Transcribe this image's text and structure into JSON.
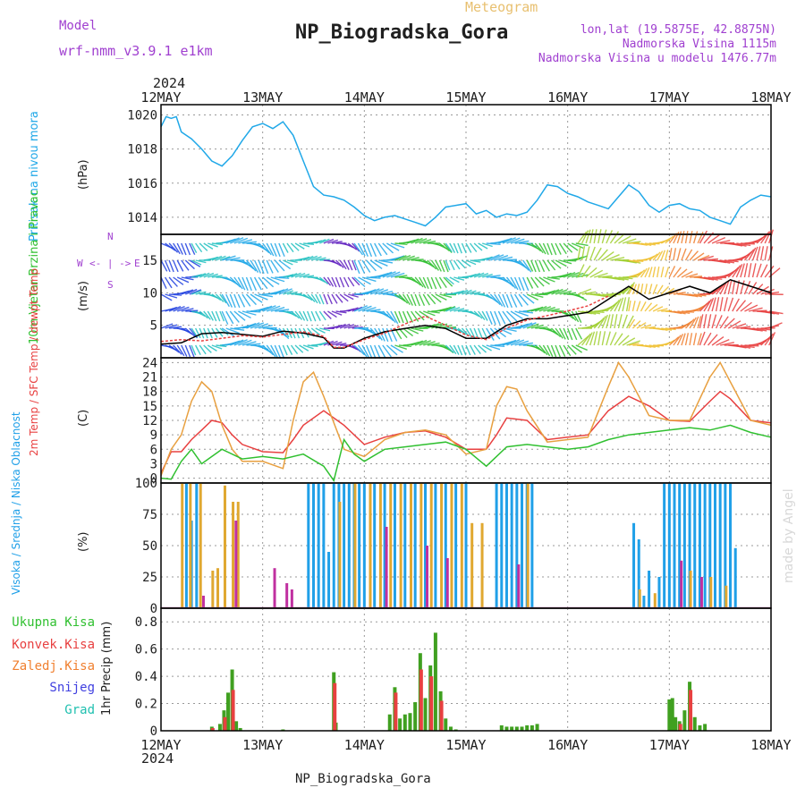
{
  "header": {
    "model_label": "Model",
    "model_name": "wrf-nmm_v3.9.1  e1km",
    "title": "NP_Biogradska_Gora",
    "subtitle": "Meteogram",
    "lonlat": "lon,lat (19.5875E, 42.8875N)",
    "elevation": "Nadmorska Visina 1115m",
    "model_elevation": "Nadmorska Visina u modelu 1476.77m",
    "footer": "NP_Biogradska_Gora",
    "watermark": "made by Angel",
    "year_top": "2024",
    "year_bottom": "2024",
    "colors": {
      "purple": "#a040d0",
      "orange": "#e8b040",
      "cyan": "#20a8e8",
      "green": "#30c030",
      "red": "#e84040"
    }
  },
  "chart_data": [
    {
      "type": "line",
      "title": "Pritisak na nivou mora",
      "ylabel": "(hPa)",
      "x_tick_labels": [
        "12MAY",
        "13MAY",
        "14MAY",
        "15MAY",
        "16MAY",
        "17MAY",
        "18MAY"
      ],
      "ylim": [
        1013,
        1020.6
      ],
      "yticks": [
        1014,
        1016,
        1018,
        1020
      ],
      "grid": true,
      "series": [
        {
          "color": "#20a8e8",
          "x": [
            0,
            0.05,
            0.1,
            0.15,
            0.2,
            0.3,
            0.4,
            0.5,
            0.6,
            0.7,
            0.8,
            0.9,
            1.0,
            1.1,
            1.2,
            1.3,
            1.4,
            1.5,
            1.6,
            1.7,
            1.8,
            1.9,
            2.0,
            2.1,
            2.2,
            2.3,
            2.4,
            2.5,
            2.6,
            2.7,
            2.8,
            2.9,
            3.0,
            3.1,
            3.2,
            3.3,
            3.4,
            3.5,
            3.6,
            3.7,
            3.8,
            3.9,
            4.0,
            4.1,
            4.2,
            4.3,
            4.4,
            4.5,
            4.6,
            4.7,
            4.8,
            4.9,
            5.0,
            5.1,
            5.2,
            5.3,
            5.4,
            5.5,
            5.6,
            5.7,
            5.8,
            5.9,
            6.0
          ],
          "y": [
            1019.3,
            1019.9,
            1019.8,
            1019.9,
            1019.0,
            1018.6,
            1018.0,
            1017.3,
            1017.0,
            1017.6,
            1018.5,
            1019.3,
            1019.5,
            1019.2,
            1019.6,
            1018.8,
            1017.3,
            1015.8,
            1015.3,
            1015.2,
            1015.0,
            1014.6,
            1014.1,
            1013.8,
            1014.0,
            1014.1,
            1013.9,
            1013.7,
            1013.5,
            1014.0,
            1014.6,
            1014.7,
            1014.8,
            1014.2,
            1014.4,
            1014.0,
            1014.2,
            1014.1,
            1014.3,
            1015.0,
            1015.9,
            1015.8,
            1015.4,
            1015.2,
            1014.9,
            1014.7,
            1014.5,
            1015.2,
            1015.9,
            1015.5,
            1014.7,
            1014.3,
            1014.7,
            1014.8,
            1014.5,
            1014.4,
            1014.0,
            1013.8,
            1013.6,
            1014.6,
            1015.0,
            1015.3,
            1015.2
          ]
        }
      ]
    },
    {
      "type": "line",
      "title": "10m Vjetar Brzina i Pravac",
      "ylabel": "(m/s)",
      "direction_legend": [
        "N",
        "W",
        "E",
        "<- | ->",
        "S"
      ],
      "ylim": [
        0,
        19
      ],
      "yticks": [
        5,
        10,
        15
      ],
      "grid": true,
      "wind_barb_colors": [
        "#6020c0",
        "#2040e0",
        "#20a8e8",
        "#20c0c0",
        "#30c030",
        "#a0d030",
        "#f0c030",
        "#f08030",
        "#e84040"
      ],
      "series": [
        {
          "color": "#000000",
          "x": [
            0,
            0.2,
            0.4,
            0.6,
            0.8,
            1.0,
            1.2,
            1.4,
            1.6,
            1.7,
            1.8,
            2.0,
            2.2,
            2.4,
            2.6,
            2.8,
            3.0,
            3.2,
            3.4,
            3.6,
            3.8,
            4.0,
            4.2,
            4.4,
            4.6,
            4.8,
            5.0,
            5.2,
            5.4,
            5.6,
            5.8,
            6.0
          ],
          "y": [
            2.1,
            2.3,
            3.7,
            3.9,
            3.6,
            3.3,
            4.1,
            3.8,
            3.1,
            1.5,
            1.5,
            3.0,
            4.0,
            4.5,
            5.0,
            4.5,
            3.0,
            3.0,
            5.0,
            6.0,
            6.0,
            6.5,
            7.0,
            9.0,
            11.0,
            9.0,
            10.0,
            11.0,
            10.0,
            12.0,
            11.0,
            10.0
          ]
        },
        {
          "color": "#e84040",
          "x": [
            0,
            0.2,
            0.4,
            0.6,
            0.8,
            1.0,
            1.2,
            1.4,
            1.6,
            1.7,
            1.8,
            2.0,
            2.2,
            2.4,
            2.6,
            2.8,
            3.0,
            3.2,
            3.4,
            3.6,
            3.8,
            4.0,
            4.2,
            4.4
          ],
          "y": [
            2.5,
            2.8,
            2.6,
            3.0,
            3.4,
            3.2,
            3.6,
            4.0,
            3.3,
            1.6,
            1.6,
            2.8,
            3.8,
            5.2,
            6.4,
            5.0,
            3.5,
            2.8,
            4.6,
            5.8,
            6.5,
            7.2,
            8.0,
            9.5
          ]
        }
      ]
    },
    {
      "type": "line",
      "title": "2m Temp / SFC Temp / dewpt Temp",
      "ylabel": "(C)",
      "ylim": [
        -1,
        25
      ],
      "yticks": [
        0,
        3,
        6,
        9,
        12,
        15,
        18,
        21,
        24
      ],
      "grid": true,
      "series": [
        {
          "name": "2m Temp",
          "color": "#e84040",
          "x": [
            0,
            0.1,
            0.2,
            0.3,
            0.4,
            0.5,
            0.6,
            0.7,
            0.8,
            1.0,
            1.2,
            1.3,
            1.4,
            1.6,
            1.8,
            2.0,
            2.2,
            2.4,
            2.6,
            2.8,
            3.0,
            3.2,
            3.3,
            3.4,
            3.6,
            3.8,
            4.0,
            4.2,
            4.4,
            4.6,
            4.8,
            5.0,
            5.2,
            5.4,
            5.5,
            5.6,
            5.8,
            6.0
          ],
          "y": [
            1.0,
            5.5,
            5.5,
            8.0,
            10.0,
            12.0,
            11.5,
            9.0,
            7.0,
            5.5,
            5.3,
            8.0,
            11.0,
            14.0,
            11.0,
            7.0,
            8.5,
            9.5,
            9.8,
            8.5,
            6.0,
            6.0,
            9.0,
            12.5,
            12.0,
            8.0,
            8.5,
            9.0,
            14.0,
            17.0,
            15.0,
            12.0,
            11.8,
            16.0,
            18.0,
            16.5,
            12.0,
            11.5
          ]
        },
        {
          "name": "SFC Temp",
          "color": "#e8a040",
          "x": [
            0,
            0.1,
            0.2,
            0.3,
            0.4,
            0.5,
            0.6,
            0.7,
            0.8,
            1.0,
            1.2,
            1.3,
            1.4,
            1.5,
            1.6,
            1.8,
            2.0,
            2.2,
            2.4,
            2.6,
            2.8,
            3.0,
            3.2,
            3.3,
            3.4,
            3.5,
            3.6,
            3.8,
            4.0,
            4.2,
            4.4,
            4.5,
            4.6,
            4.8,
            5.0,
            5.2,
            5.4,
            5.5,
            5.6,
            5.8,
            6.0
          ],
          "y": [
            0.5,
            6.0,
            9.0,
            16.0,
            20.0,
            18.0,
            11.0,
            6.0,
            3.5,
            3.5,
            2.0,
            12.0,
            20.0,
            22.0,
            17.0,
            6.0,
            4.5,
            8.0,
            9.5,
            10.0,
            9.0,
            5.0,
            6.0,
            15.0,
            19.0,
            18.5,
            14.0,
            7.5,
            8.0,
            8.5,
            19.0,
            24.0,
            21.0,
            13.0,
            12.0,
            12.0,
            21.0,
            24.0,
            20.0,
            12.0,
            11.0
          ]
        },
        {
          "name": "dewpt Temp",
          "color": "#30c030",
          "x": [
            0,
            0.1,
            0.2,
            0.3,
            0.4,
            0.5,
            0.6,
            0.8,
            1.0,
            1.2,
            1.4,
            1.6,
            1.7,
            1.8,
            1.9,
            2.0,
            2.2,
            2.4,
            2.6,
            2.8,
            3.0,
            3.2,
            3.4,
            3.6,
            3.8,
            4.0,
            4.2,
            4.4,
            4.6,
            4.8,
            5.0,
            5.2,
            5.4,
            5.6,
            5.8,
            6.0
          ],
          "y": [
            0.0,
            -0.2,
            3.5,
            6.0,
            3.0,
            4.5,
            6.0,
            4.0,
            4.5,
            4.0,
            5.0,
            2.5,
            -0.5,
            8.0,
            5.0,
            3.5,
            6.0,
            6.5,
            7.0,
            7.5,
            6.0,
            2.5,
            6.5,
            7.0,
            6.5,
            6.0,
            6.5,
            8.0,
            9.0,
            9.5,
            10.0,
            10.5,
            10.0,
            11.0,
            9.5,
            8.5
          ]
        }
      ]
    },
    {
      "type": "bar",
      "title": "Visoka / Srednja / Niska Oblacnost",
      "ylabel": "(%)",
      "ylim": [
        0,
        100
      ],
      "yticks": [
        0,
        25,
        50,
        75,
        100
      ],
      "grid": true,
      "series": [
        {
          "name": "Visoka Oblacnost",
          "color": "#20a0e8",
          "x": [
            0.25,
            0.3,
            0.35,
            1.45,
            1.5,
            1.55,
            1.6,
            1.65,
            1.7,
            1.75,
            1.8,
            1.85,
            1.9,
            1.95,
            2.0,
            2.1,
            2.2,
            2.3,
            2.4,
            2.5,
            2.6,
            2.7,
            2.8,
            2.9,
            3.0,
            3.3,
            3.35,
            3.4,
            3.45,
            3.5,
            3.55,
            3.6,
            3.65,
            4.65,
            4.7,
            4.75,
            4.8,
            4.9,
            4.95,
            5.0,
            5.05,
            5.1,
            5.15,
            5.2,
            5.25,
            5.3,
            5.35,
            5.4,
            5.45,
            5.5,
            5.55,
            5.6,
            5.65
          ],
          "values": [
            100,
            70,
            100,
            100,
            100,
            100,
            100,
            45,
            100,
            100,
            100,
            100,
            100,
            100,
            100,
            100,
            100,
            100,
            100,
            100,
            100,
            100,
            100,
            100,
            100,
            100,
            100,
            100,
            100,
            100,
            100,
            100,
            100,
            68,
            55,
            10,
            30,
            25,
            100,
            100,
            100,
            100,
            100,
            100,
            100,
            100,
            100,
            100,
            100,
            100,
            100,
            100,
            48
          ]
        },
        {
          "name": "Srednja Oblacnost",
          "color": "#e0a830",
          "x": [
            0.2,
            0.28,
            0.38,
            0.5,
            0.55,
            0.62,
            0.7,
            0.75,
            1.75,
            1.9,
            2.05,
            2.15,
            2.25,
            2.35,
            2.45,
            2.55,
            2.65,
            2.75,
            2.85,
            2.95,
            3.05,
            3.15,
            3.6,
            4.7,
            4.85,
            5.2,
            5.4,
            5.55
          ],
          "values": [
            100,
            100,
            100,
            30,
            32,
            98,
            85,
            85,
            85,
            100,
            100,
            100,
            100,
            100,
            100,
            100,
            100,
            100,
            100,
            100,
            68,
            68,
            100,
            15,
            12,
            30,
            25,
            18
          ]
        },
        {
          "name": "Niska Oblacnost",
          "color": "#c030a0",
          "x": [
            0.4,
            0.72,
            1.1,
            1.22,
            1.27,
            2.2,
            2.6,
            2.8,
            3.5,
            5.1,
            5.3
          ],
          "values": [
            10,
            70,
            32,
            20,
            15,
            65,
            50,
            40,
            35,
            38,
            25
          ]
        }
      ]
    },
    {
      "type": "bar",
      "title": "1hr Precip",
      "ylabel": "1hr Precip (mm)",
      "legend": [
        "Ukupna Kisa",
        "Konvek.Kisa",
        "Zaledj.Kisa",
        "Snijeg",
        "Grad"
      ],
      "legend_colors": [
        "#30c030",
        "#e84040",
        "#f08030",
        "#4040e0",
        "#20c0b0"
      ],
      "ylim": [
        0,
        0.9
      ],
      "yticks": [
        0,
        0.2,
        0.4,
        0.6,
        0.8
      ],
      "grid": true,
      "series": [
        {
          "name": "Ukupna Kisa",
          "color": "#40a020",
          "x": [
            0.5,
            0.58,
            0.62,
            0.66,
            0.7,
            0.74,
            0.78,
            1.2,
            1.7,
            1.72,
            2.25,
            2.3,
            2.35,
            2.4,
            2.45,
            2.5,
            2.55,
            2.6,
            2.65,
            2.7,
            2.75,
            2.8,
            2.85,
            2.9,
            3.35,
            3.4,
            3.45,
            3.5,
            3.55,
            3.6,
            3.65,
            3.7,
            5.0,
            5.03,
            5.06,
            5.1,
            5.15,
            5.2,
            5.25,
            5.3,
            5.35
          ],
          "values": [
            0.03,
            0.05,
            0.15,
            0.28,
            0.45,
            0.07,
            0.02,
            0.01,
            0.43,
            0.06,
            0.12,
            0.32,
            0.09,
            0.12,
            0.13,
            0.21,
            0.57,
            0.24,
            0.48,
            0.72,
            0.29,
            0.09,
            0.03,
            0.01,
            0.04,
            0.03,
            0.03,
            0.03,
            0.03,
            0.04,
            0.04,
            0.05,
            0.23,
            0.24,
            0.1,
            0.07,
            0.15,
            0.36,
            0.1,
            0.04,
            0.05
          ]
        },
        {
          "name": "Konvek.Kisa",
          "color": "#e84040",
          "x": [
            0.5,
            0.62,
            0.7,
            1.7,
            2.3,
            2.55,
            2.65,
            2.75,
            5.1,
            5.2
          ],
          "values": [
            0.02,
            0.1,
            0.3,
            0.35,
            0.28,
            0.45,
            0.4,
            0.22,
            0.05,
            0.3
          ]
        }
      ]
    }
  ]
}
